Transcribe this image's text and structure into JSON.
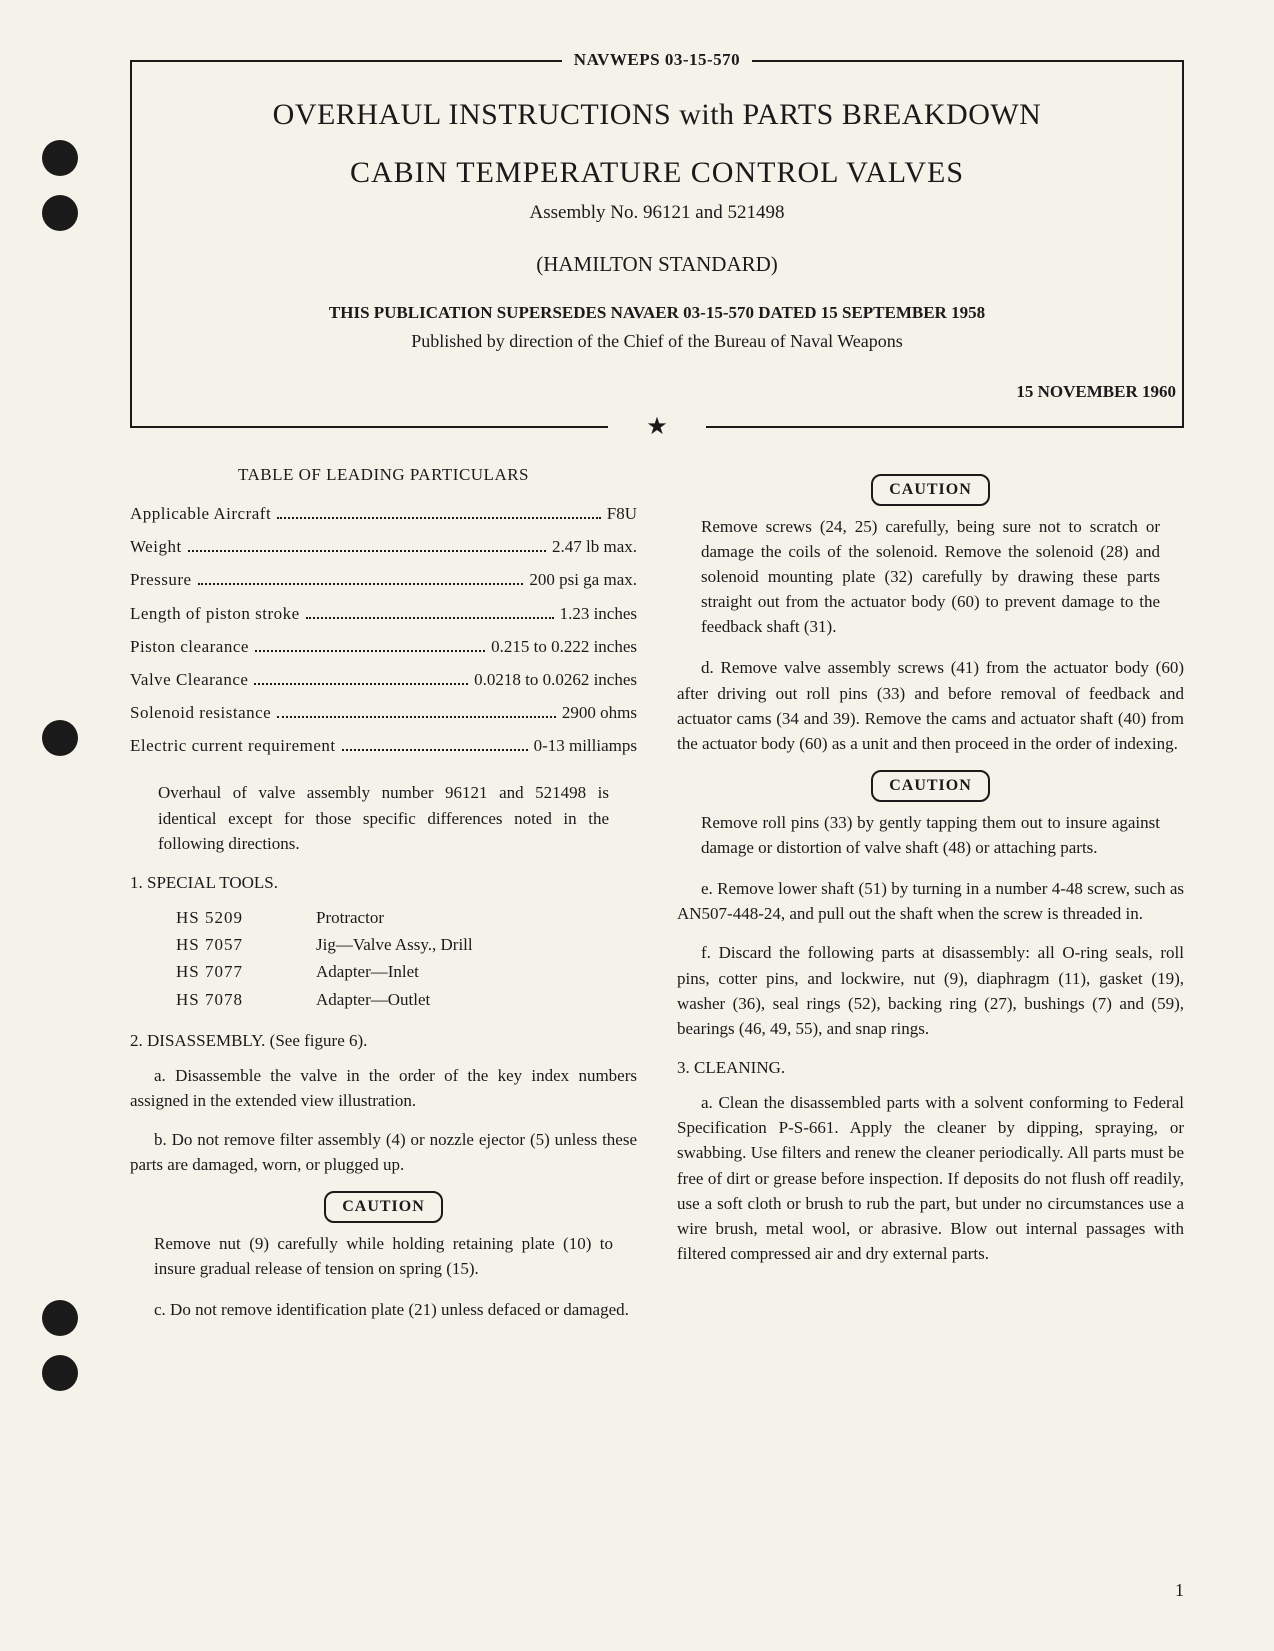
{
  "header": {
    "frame_label": "NAVWEPS 03-15-570",
    "title_line1": "OVERHAUL INSTRUCTIONS with PARTS BREAKDOWN",
    "title_line2": "CABIN TEMPERATURE CONTROL VALVES",
    "assembly": "Assembly No. 96121 and 521498",
    "manufacturer": "(HAMILTON STANDARD)",
    "supersedes": "THIS PUBLICATION SUPERSEDES NAVAER 03-15-570 DATED 15 SEPTEMBER 1958",
    "publisher": "Published by direction of the Chief of the Bureau of Naval Weapons",
    "date": "15 NOVEMBER 1960",
    "star": "★"
  },
  "left": {
    "table_heading": "TABLE OF LEADING PARTICULARS",
    "specs": [
      {
        "label": "Applicable Aircraft",
        "value": "F8U"
      },
      {
        "label": "Weight",
        "value": "2.47 lb max."
      },
      {
        "label": "Pressure",
        "value": "200 psi ga max."
      },
      {
        "label": "Length of piston stroke",
        "value": "1.23 inches"
      },
      {
        "label": "Piston clearance",
        "value": "0.215 to 0.222 inches"
      },
      {
        "label": "Valve Clearance",
        "value": "0.0218 to 0.0262 inches"
      },
      {
        "label": "Solenoid resistance",
        "value": "2900 ohms"
      },
      {
        "label": "Electric current requirement",
        "value": "0-13 milliamps"
      }
    ],
    "intro": "Overhaul of valve assembly number 96121 and 521498 is identical except for those specific differences noted in the following directions.",
    "sec1_head": "1. SPECIAL TOOLS.",
    "tools": [
      {
        "pn": "HS 5209",
        "desc": "Protractor"
      },
      {
        "pn": "HS 7057",
        "desc": "Jig—Valve Assy., Drill"
      },
      {
        "pn": "HS 7077",
        "desc": "Adapter—Inlet"
      },
      {
        "pn": "HS 7078",
        "desc": "Adapter—Outlet"
      }
    ],
    "sec2_head": "2. DISASSEMBLY. (See figure 6).",
    "p2a": "a. Disassemble the valve in the order of the key index numbers assigned in the extended view illustration.",
    "p2b": "b. Do not remove filter assembly (4) or nozzle ejector (5) unless these parts are damaged, worn, or plugged up.",
    "caution1_label": "CAUTION",
    "caution1_body": "Remove nut (9) carefully while holding retaining plate (10) to insure gradual release of tension on spring (15).",
    "p2c": "c. Do not remove identification plate (21) unless defaced or damaged."
  },
  "right": {
    "caution2_label": "CAUTION",
    "caution2_body": "Remove screws (24, 25) carefully, being sure not to scratch or damage the coils of the solenoid. Remove the solenoid (28) and solenoid mounting plate (32) carefully by drawing these parts straight out from the actuator body (60) to prevent damage to the feedback shaft (31).",
    "p2d": "d. Remove valve assembly screws (41) from the actuator body (60) after driving out roll pins (33) and before removal of feedback and actuator cams (34 and 39). Remove the cams and actuator shaft (40) from the actuator body (60) as a unit and then proceed in the order of indexing.",
    "caution3_label": "CAUTION",
    "caution3_body": "Remove roll pins (33) by gently tapping them out to insure against damage or distortion of valve shaft (48) or attaching parts.",
    "p2e": "e. Remove lower shaft (51) by turning in a number 4-48 screw, such as AN507-448-24, and pull out the shaft when the screw is threaded in.",
    "p2f": "f. Discard the following parts at disassembly: all O-ring seals, roll pins, cotter pins, and lockwire, nut (9), diaphragm (11), gasket (19), washer (36), seal rings (52), backing ring (27), bushings (7) and (59), bearings (46, 49, 55), and snap rings.",
    "sec3_head": "3. CLEANING.",
    "p3a": "a. Clean the disassembled parts with a solvent conforming to Federal Specification P-S-661. Apply the cleaner by dipping, spraying, or swabbing. Use filters and renew the cleaner periodically. All parts must be free of dirt or grease before inspection. If deposits do not flush off readily, use a soft cloth or brush to rub the part, but under no circumstances use a wire brush, metal wool, or abrasive. Blow out internal passages with filtered compressed air and dry external parts."
  },
  "page_number": "1"
}
